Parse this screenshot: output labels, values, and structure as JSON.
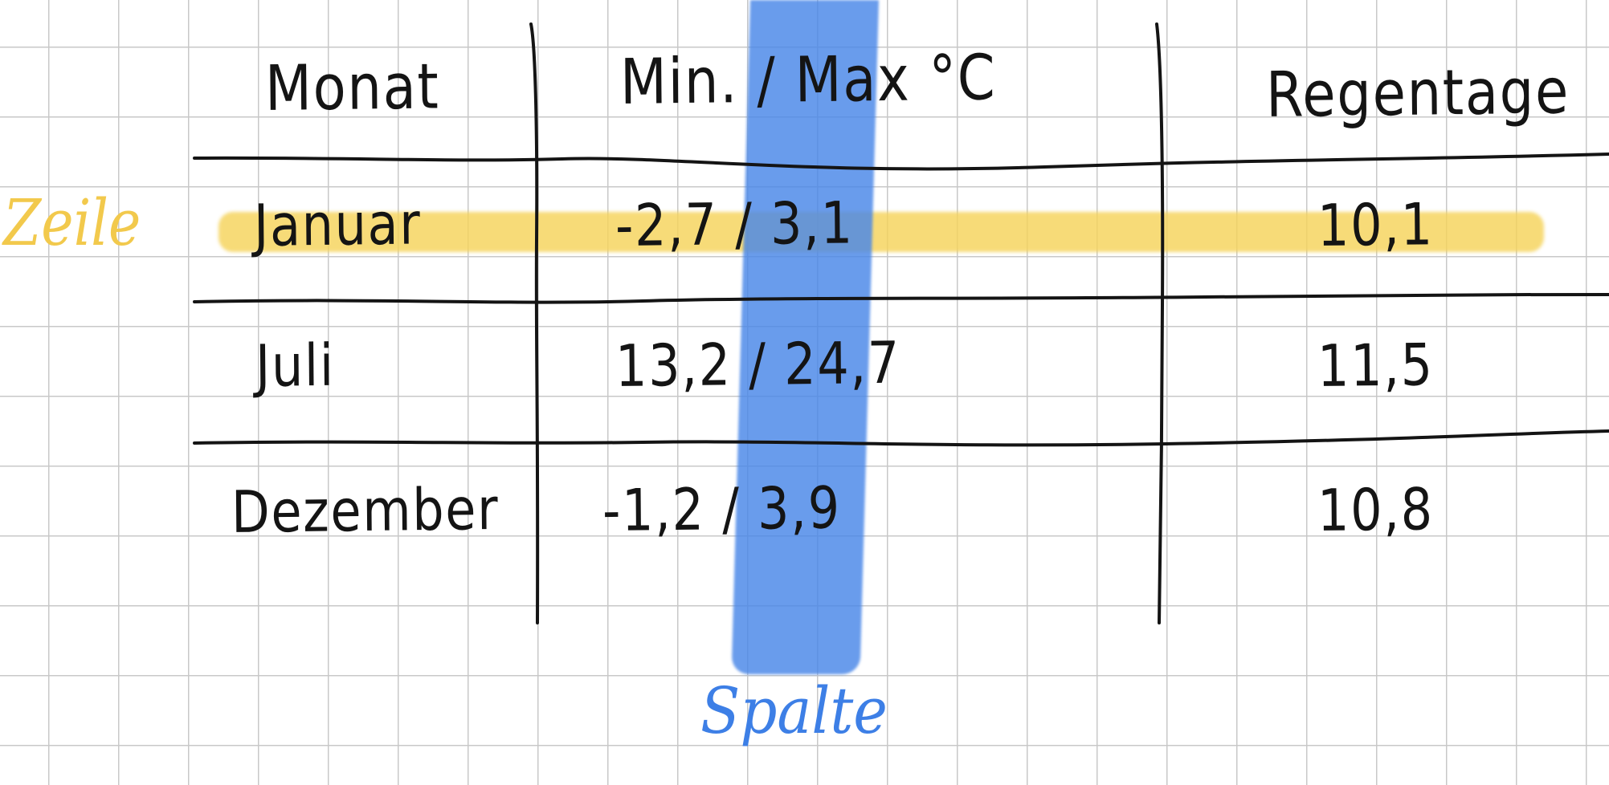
{
  "table": {
    "headers": [
      "Monat",
      "Min. / Max °C",
      "Regentage"
    ],
    "rows": [
      [
        "Januar",
        "-2,7 / 3,1",
        "10,1"
      ],
      [
        "Juli",
        "13,2 / 24,7",
        "11,5"
      ],
      [
        "Dezember",
        "-1,2 / 3,9",
        "10,8"
      ]
    ]
  },
  "annotations": {
    "row_label": "Zeile",
    "column_label": "Spalte"
  },
  "colors": {
    "row_highlight": "#f5d35a",
    "column_highlight": "#4886e8",
    "row_label": "#f2c94c",
    "column_label": "#3d7fe6",
    "ink": "#141414",
    "grid": "#c8c8c8"
  }
}
